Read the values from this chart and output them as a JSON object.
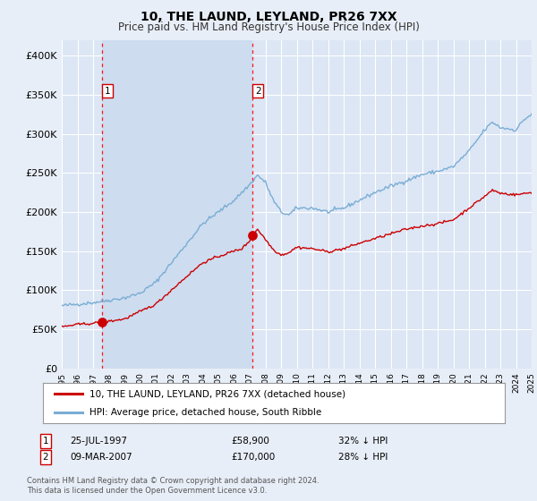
{
  "title": "10, THE LAUND, LEYLAND, PR26 7XX",
  "subtitle": "Price paid vs. HM Land Registry's House Price Index (HPI)",
  "background_color": "#e8eef7",
  "plot_bg_color": "#dce6f5",
  "highlight_bg_color": "#cddcef",
  "grid_color": "#ffffff",
  "ylim": [
    0,
    420000
  ],
  "yticks": [
    0,
    50000,
    100000,
    150000,
    200000,
    250000,
    300000,
    350000,
    400000
  ],
  "xstart_year": 1995,
  "xend_year": 2025,
  "hpi_color": "#7aadd4",
  "price_color": "#cc0000",
  "sale1_year": 1997.57,
  "sale1_price": 58900,
  "sale2_year": 2007.18,
  "sale2_price": 170000,
  "sale1_label": "1",
  "sale2_label": "2",
  "legend_line1": "10, THE LAUND, LEYLAND, PR26 7XX (detached house)",
  "legend_line2": "HPI: Average price, detached house, South Ribble",
  "annot1_date": "25-JUL-1997",
  "annot1_price": "£58,900",
  "annot1_hpi": "32% ↓ HPI",
  "annot2_date": "09-MAR-2007",
  "annot2_price": "£170,000",
  "annot2_hpi": "28% ↓ HPI",
  "footnote": "Contains HM Land Registry data © Crown copyright and database right 2024.\nThis data is licensed under the Open Government Licence v3.0."
}
